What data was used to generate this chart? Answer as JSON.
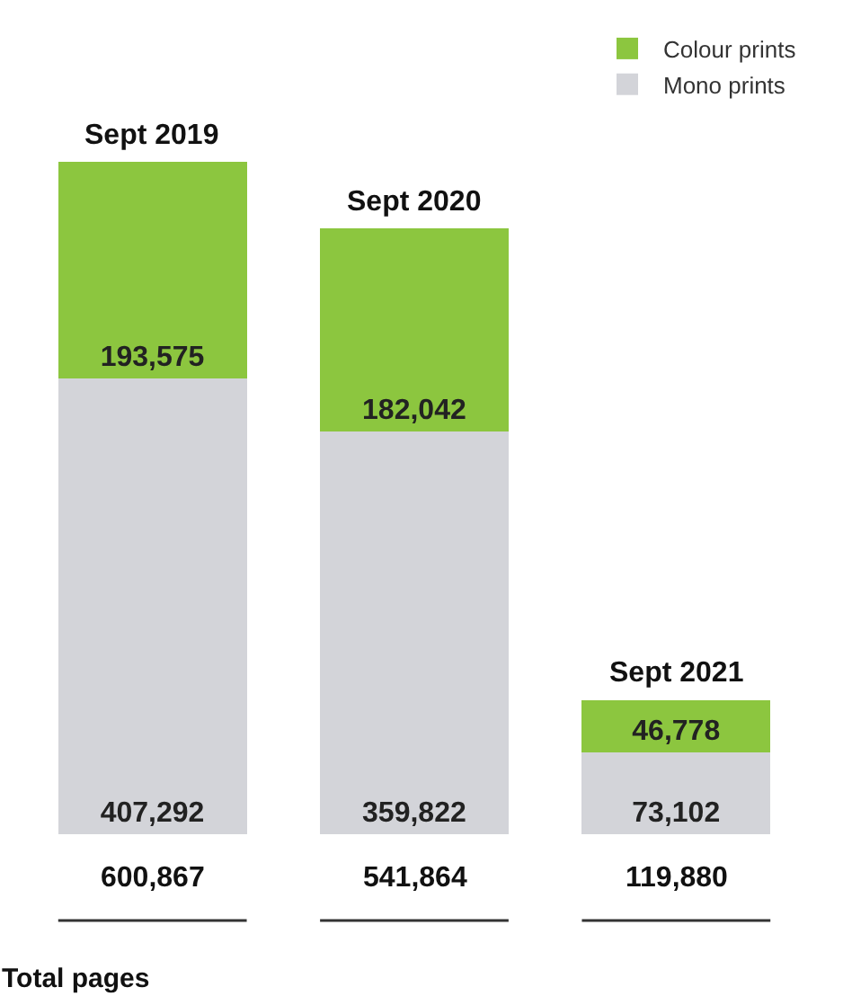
{
  "chart_data": {
    "type": "bar",
    "stacked": true,
    "categories": [
      "Sept 2019",
      "Sept 2020",
      "Sept 2021"
    ],
    "series": [
      {
        "name": "Mono prints",
        "color": "#d3d4d9",
        "values": [
          407292,
          359822,
          73102
        ],
        "value_labels": [
          "407,292",
          "359,822",
          "73,102"
        ]
      },
      {
        "name": "Colour prints",
        "color": "#8cc63f",
        "values": [
          193575,
          182042,
          46778
        ],
        "value_labels": [
          "193,575",
          "182,042",
          "46,778"
        ]
      }
    ],
    "totals": [
      "600,867",
      "541,864",
      "119,880"
    ],
    "legend": "top right",
    "annotations": [
      "Total pages"
    ]
  }
}
